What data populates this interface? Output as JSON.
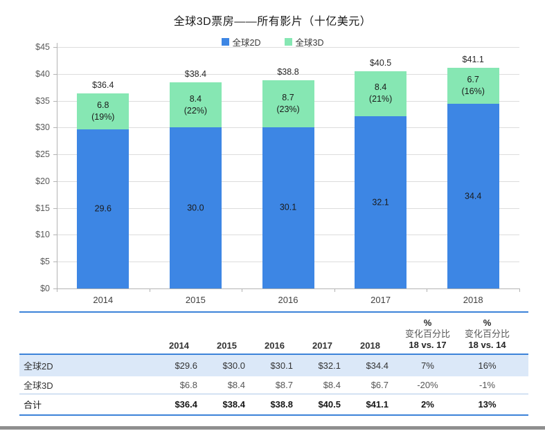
{
  "page": {
    "title": "全球3D票房——所有影片（十亿美元）"
  },
  "chart_data": {
    "type": "bar",
    "subtype": "stacked",
    "title": "全球3D票房——所有影片（十亿美元）",
    "categories": [
      "2014",
      "2015",
      "2016",
      "2017",
      "2018"
    ],
    "series": [
      {
        "name": "全球2D",
        "color": "#3d86e4",
        "values": [
          29.6,
          30.0,
          30.1,
          32.1,
          34.4
        ],
        "labels": [
          "29.6",
          "30.0",
          "30.1",
          "32.1",
          "34.4"
        ]
      },
      {
        "name": "全球3D",
        "color": "#86e7b3",
        "values": [
          6.8,
          8.4,
          8.7,
          8.4,
          6.7
        ],
        "labels": [
          "6.8",
          "8.4",
          "8.7",
          "8.4",
          "6.7"
        ],
        "pct_labels": [
          "(19%)",
          "(22%)",
          "(23%)",
          "(21%)",
          "(16%)"
        ]
      }
    ],
    "totals": [
      36.4,
      38.4,
      38.8,
      40.5,
      41.1
    ],
    "total_labels": [
      "$36.4",
      "$38.4",
      "$38.8",
      "$40.5",
      "$41.1"
    ],
    "y_ticks": [
      "$0",
      "$5",
      "$10",
      "$15",
      "$20",
      "$25",
      "$30",
      "$35",
      "$40",
      "$45"
    ],
    "ylim": [
      0,
      45
    ],
    "ytick_step": 5,
    "grid": true,
    "legend_position": "top",
    "xlabel": "",
    "ylabel": ""
  },
  "table": {
    "header": {
      "years": [
        "2014",
        "2015",
        "2016",
        "2017",
        "2018"
      ],
      "pct_cols": [
        {
          "line1": "%",
          "line2": "变化百分比",
          "line3": "18 vs. 17"
        },
        {
          "line1": "%",
          "line2": "变化百分比",
          "line3": "18 vs. 14"
        }
      ]
    },
    "rows": [
      {
        "label": "全球2D",
        "values": [
          "$29.6",
          "$30.0",
          "$30.1",
          "$32.1",
          "$34.4"
        ],
        "pct": [
          "7%",
          "16%"
        ],
        "style": "highlight"
      },
      {
        "label": "全球3D",
        "values": [
          "$6.8",
          "$8.4",
          "$8.7",
          "$8.4",
          "$6.7"
        ],
        "pct": [
          "-20%",
          "-1%"
        ],
        "style": "muted"
      },
      {
        "label": "合计",
        "values": [
          "$36.4",
          "$38.4",
          "$38.8",
          "$40.5",
          "$41.1"
        ],
        "pct": [
          "2%",
          "13%"
        ],
        "style": "bold"
      }
    ]
  },
  "colors": {
    "series_2d": "#3d86e4",
    "series_3d": "#86e7b3",
    "table_rule": "#3b82d8",
    "row_highlight": "#dbe8f8",
    "gridline": "#dcdcdc",
    "bottom_bar": "#8f8f8f"
  }
}
